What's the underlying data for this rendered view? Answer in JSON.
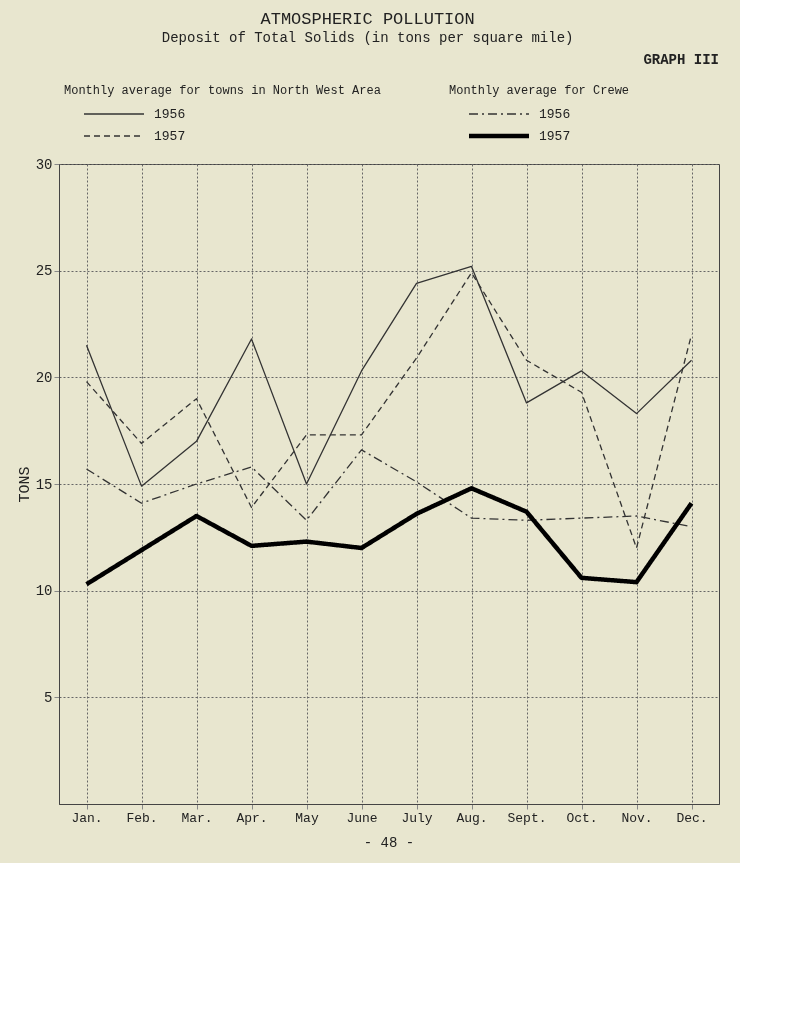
{
  "chart_data": {
    "type": "line",
    "title": "ATMOSPHERIC  POLLUTION",
    "subtitle": "Deposit of Total Solids (in tons per square mile)",
    "ylabel": "TONS",
    "categories": [
      "Jan.",
      "Feb.",
      "Mar.",
      "Apr.",
      "May",
      "June",
      "July",
      "Aug.",
      "Sept.",
      "Oct.",
      "Nov.",
      "Dec."
    ],
    "series": [
      {
        "name": "1956",
        "color": "#333333",
        "line_style": "solid",
        "values": [
          21.5,
          14.9,
          17.0,
          21.8,
          15.0,
          20.3,
          24.4,
          25.2,
          18.8,
          20.3,
          18.3,
          20.8
        ]
      },
      {
        "name": "1957",
        "color": "#333333",
        "line_style": "dashed",
        "values": [
          19.8,
          16.9,
          19.0,
          13.9,
          17.3,
          17.3,
          20.9,
          24.9,
          20.8,
          19.3,
          12.0,
          22.0
        ]
      },
      {
        "name": "1956",
        "color": "#333333",
        "line_style": "dashdot",
        "values": [
          15.7,
          14.1,
          15.0,
          15.8,
          13.3,
          16.6,
          15.1,
          13.4,
          13.3,
          13.4,
          13.5,
          13.0
        ]
      },
      {
        "name": "1957",
        "color": "#000000",
        "line_style": "thick",
        "values": [
          10.3,
          11.9,
          13.5,
          12.1,
          12.3,
          12.0,
          13.6,
          14.8,
          13.7,
          10.6,
          10.4,
          14.1
        ]
      }
    ],
    "ylim": [
      0,
      30
    ],
    "yticks": [
      5,
      10,
      15,
      20,
      25,
      30
    ],
    "grid": true,
    "legend": "top",
    "marker": "none",
    "annotations": [
      "GRAPH III",
      "Monthly average for towns in North West Area",
      "Monthly average for Crewe",
      "- 48 -"
    ]
  }
}
